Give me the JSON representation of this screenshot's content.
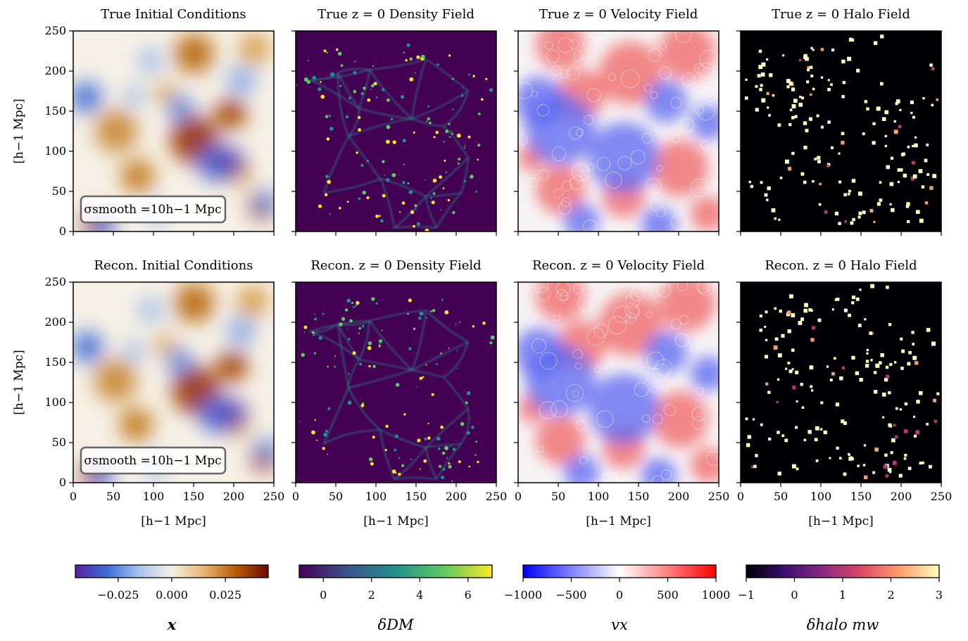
{
  "chart_data": {
    "type": "heatmap",
    "rows": [
      {
        "panels": [
          {
            "title": "True Initial Conditions",
            "field": "initial",
            "annotation": "σsmooth =10h−1 Mpc"
          },
          {
            "title": "True z = 0 Density Field",
            "field": "density"
          },
          {
            "title": "True z = 0 Velocity Field",
            "field": "velocity"
          },
          {
            "title": "True z = 0 Halo Field",
            "field": "halo"
          }
        ]
      },
      {
        "panels": [
          {
            "title": "Recon. Initial Conditions",
            "field": "initial",
            "annotation": "σsmooth =10h−1 Mpc"
          },
          {
            "title": "Recon. z = 0 Density Field",
            "field": "density"
          },
          {
            "title": "Recon. z = 0 Velocity Field",
            "field": "velocity"
          },
          {
            "title": "Recon. z = 0 Halo Field",
            "field": "halo"
          }
        ]
      }
    ],
    "xlabel": "[h−1 Mpc]",
    "ylabel": "[h−1 Mpc]",
    "xlim": [
      0,
      250
    ],
    "ylim": [
      0,
      250
    ],
    "xticks": [
      "0",
      "50",
      "100",
      "150",
      "200",
      "250"
    ],
    "yticks": [
      "0",
      "50",
      "100",
      "150",
      "200",
      "250"
    ],
    "colorbars": [
      {
        "label": "x",
        "cmap": "PuOr-like (blue–white–brown)",
        "vmin": -0.045,
        "vmax": 0.045,
        "ticks": [
          "−0.025",
          "0.000",
          "0.025"
        ],
        "tick_values": [
          -0.025,
          0.0,
          0.025
        ]
      },
      {
        "label": "δDM",
        "cmap": "viridis",
        "vmin": -1,
        "vmax": 7,
        "ticks": [
          "0",
          "2",
          "4",
          "6"
        ],
        "tick_values": [
          0,
          2,
          4,
          6
        ]
      },
      {
        "label": "vx",
        "cmap": "bwr",
        "vmin": -1000,
        "vmax": 1000,
        "ticks": [
          "−1000",
          "−500",
          "0",
          "500",
          "1000"
        ],
        "tick_values": [
          -1000,
          -500,
          0,
          500,
          1000
        ]
      },
      {
        "label": "δhalo mw",
        "cmap": "magma",
        "vmin": -1,
        "vmax": 3,
        "ticks": [
          "−1",
          "0",
          "1",
          "2",
          "3"
        ],
        "tick_values": [
          -1,
          0,
          1,
          2,
          3
        ]
      }
    ],
    "colors": {
      "initial_neg": "#2f55d0",
      "initial_mid": "#f6f1e6",
      "initial_pos": "#8a2a00",
      "density_bg": "#440154",
      "density_peak": "#fde725",
      "velocity_neg": "#0000ff",
      "velocity_pos": "#ff0000",
      "halo_bg": "#000004",
      "halo_peak": "#fcfdbf"
    },
    "grid": false
  }
}
